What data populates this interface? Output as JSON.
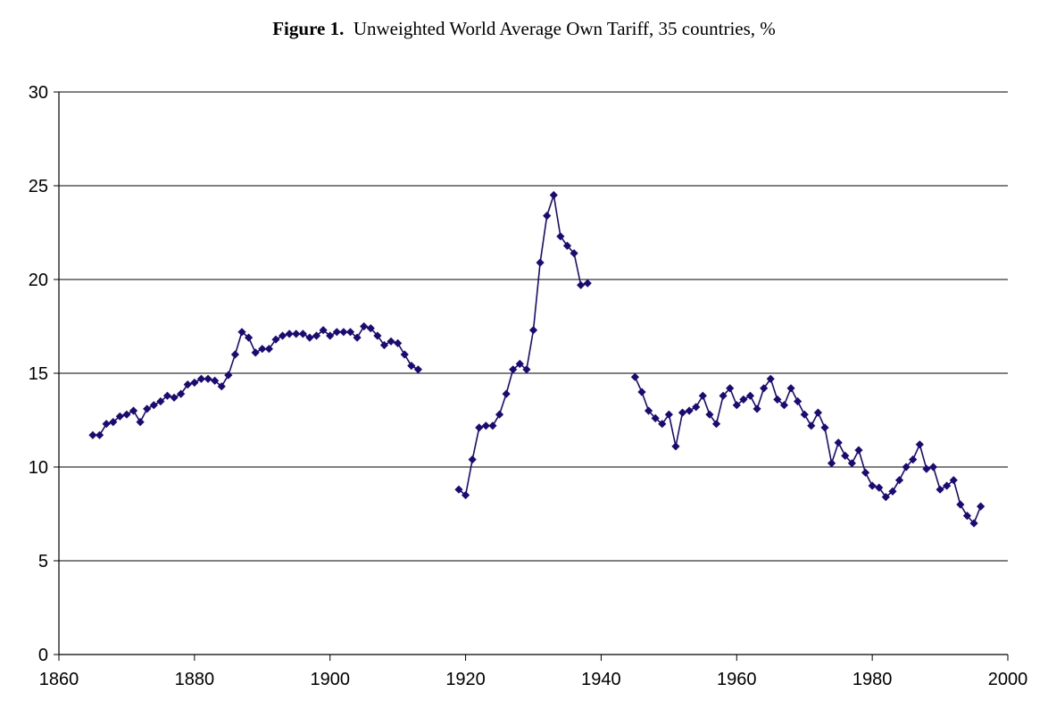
{
  "chart_data": {
    "type": "line",
    "title_prefix": "Figure 1.",
    "title": "Unweighted World Average Own Tariff, 35 countries, %",
    "xlabel": "",
    "ylabel": "",
    "xlim": [
      1860,
      2000
    ],
    "ylim": [
      0,
      30
    ],
    "xticks": [
      "1860",
      "1880",
      "1900",
      "1920",
      "1940",
      "1960",
      "1980",
      "2000"
    ],
    "yticks": [
      "0",
      "5",
      "10",
      "15",
      "20",
      "25",
      "30"
    ],
    "grid": "horizontal",
    "legend": "none",
    "colors": {
      "series": "#1a0a78",
      "grid": "#000000",
      "axis": "#000000"
    },
    "series": [
      {
        "segments": [
          {
            "x": [
              1865,
              1866,
              1867,
              1868,
              1869,
              1870,
              1871,
              1872,
              1873,
              1874,
              1875,
              1876,
              1877,
              1878,
              1879,
              1880,
              1881,
              1882,
              1883,
              1884,
              1885,
              1886,
              1887,
              1888,
              1889,
              1890,
              1891,
              1892,
              1893,
              1894,
              1895,
              1896,
              1897,
              1898,
              1899,
              1900,
              1901,
              1902,
              1903,
              1904,
              1905,
              1906,
              1907,
              1908,
              1909,
              1910,
              1911,
              1912,
              1913
            ],
            "y": [
              11.7,
              11.7,
              12.3,
              12.4,
              12.7,
              12.8,
              13.0,
              12.4,
              13.1,
              13.3,
              13.5,
              13.8,
              13.7,
              13.9,
              14.4,
              14.5,
              14.7,
              14.7,
              14.6,
              14.3,
              14.9,
              16.0,
              17.2,
              16.9,
              16.1,
              16.3,
              16.3,
              16.8,
              17.0,
              17.1,
              17.1,
              17.1,
              16.9,
              17.0,
              17.3,
              17.0,
              17.2,
              17.2,
              17.2,
              16.9,
              17.5,
              17.4,
              17.0,
              16.5,
              16.7,
              16.6,
              16.0,
              15.4,
              15.2
            ]
          },
          {
            "x": [
              1919,
              1920,
              1921,
              1922,
              1923,
              1924,
              1925,
              1926,
              1927,
              1928,
              1929,
              1930,
              1931,
              1932,
              1933,
              1934,
              1935,
              1936,
              1937,
              1938
            ],
            "y": [
              8.8,
              8.5,
              10.4,
              12.1,
              12.2,
              12.2,
              12.8,
              13.9,
              15.2,
              15.5,
              15.2,
              17.3,
              20.9,
              23.4,
              24.5,
              22.3,
              21.8,
              21.4,
              19.7,
              19.8
            ]
          },
          {
            "x": [
              1945,
              1946,
              1947,
              1948,
              1949,
              1950,
              1951,
              1952,
              1953,
              1954,
              1955,
              1956,
              1957,
              1958,
              1959,
              1960,
              1961,
              1962,
              1963,
              1964,
              1965,
              1966,
              1967,
              1968,
              1969,
              1970,
              1971,
              1972,
              1973,
              1974,
              1975,
              1976,
              1977,
              1978,
              1979,
              1980,
              1981,
              1982,
              1983,
              1984,
              1985,
              1986,
              1987,
              1988,
              1989,
              1990,
              1991,
              1992,
              1993,
              1994,
              1995,
              1996
            ],
            "y": [
              14.8,
              14.0,
              13.0,
              12.6,
              12.3,
              12.8,
              11.1,
              12.9,
              13.0,
              13.2,
              13.8,
              12.8,
              12.3,
              13.8,
              14.2,
              13.3,
              13.6,
              13.8,
              13.1,
              14.2,
              14.7,
              13.6,
              13.3,
              14.2,
              13.5,
              12.8,
              12.2,
              12.9,
              12.1,
              10.2,
              11.3,
              10.6,
              10.2,
              10.9,
              9.7,
              9.0,
              8.9,
              8.4,
              8.7,
              9.3,
              10.0,
              10.4,
              11.2,
              9.9,
              10.0,
              8.8,
              9.0,
              9.3,
              8.0,
              7.4,
              7.0,
              7.9
            ]
          }
        ]
      }
    ]
  }
}
